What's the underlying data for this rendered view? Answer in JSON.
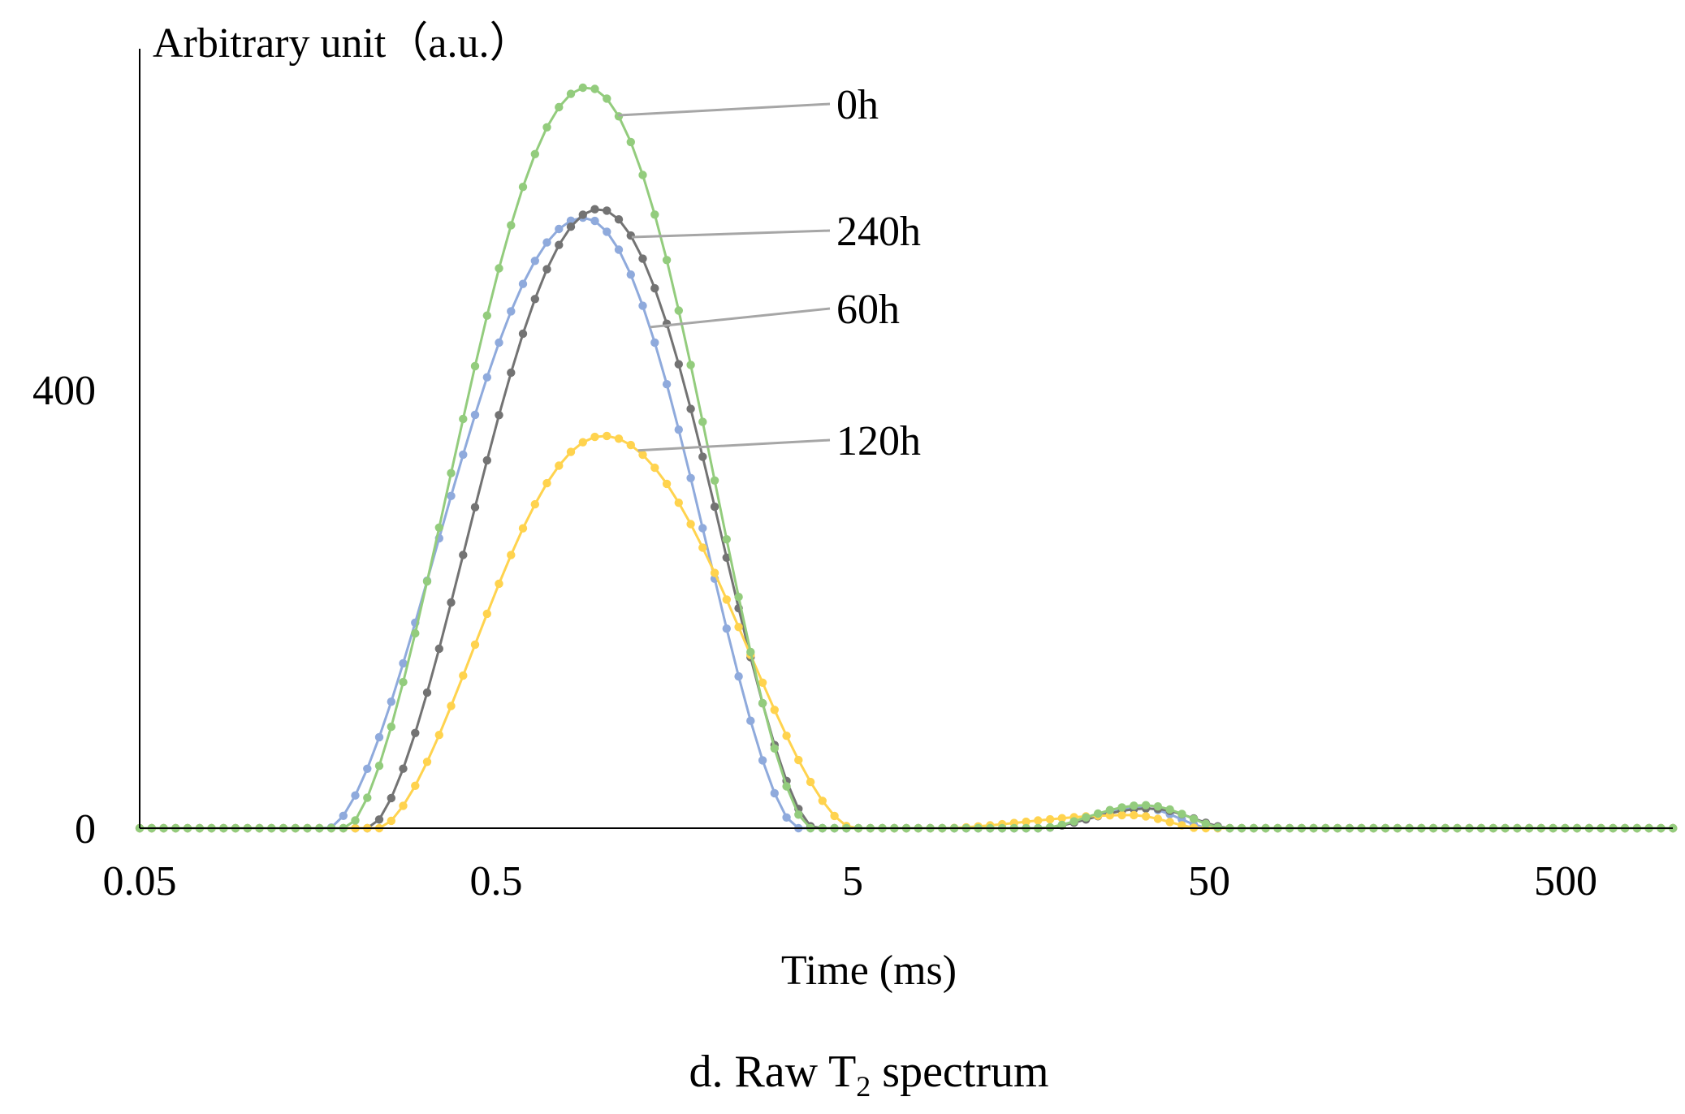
{
  "chart_data": {
    "type": "line",
    "title": "",
    "xlabel": "Time (ms)",
    "ylabel": "Arbitrary unit（a.u.）",
    "caption_main": "d. Raw T",
    "caption_sub": "2",
    "caption_tail": " spectrum",
    "x_scale": "log",
    "xlim": [
      0.05,
      1000
    ],
    "ylim": [
      0,
      700
    ],
    "x_ticks": [
      0.05,
      0.5,
      5,
      50,
      500
    ],
    "x_tick_labels": [
      "0.05",
      "0.5",
      "5",
      "50",
      "500"
    ],
    "y_ticks": [
      0,
      400
    ],
    "y_tick_labels": [
      "0",
      "400"
    ],
    "grid": false,
    "legend": "none",
    "points_per_series": 129,
    "series": [
      {
        "name": "0h",
        "color": "#93cc7d",
        "peaks": [
          {
            "start": 0.19,
            "apex": 0.9,
            "end": 3.8,
            "value": 676
          },
          {
            "start": 17,
            "apex": 33,
            "end": 55,
            "value": 21
          }
        ]
      },
      {
        "name": "60h",
        "color": "#8faadc",
        "peaks": [
          {
            "start": 0.17,
            "apex": 0.88,
            "end": 3.5,
            "value": 557
          },
          {
            "start": 17,
            "apex": 32,
            "end": 50,
            "value": 19
          }
        ]
      },
      {
        "name": "120h",
        "color": "#ffd34e",
        "peaks": [
          {
            "start": 0.235,
            "apex": 1.0,
            "end": 5.0,
            "value": 358
          },
          {
            "start": 9,
            "apex": 30,
            "end": 47,
            "value": 12
          }
        ]
      },
      {
        "name": "240h",
        "color": "#737373",
        "peaks": [
          {
            "start": 0.22,
            "apex": 0.97,
            "end": 3.9,
            "value": 565
          },
          {
            "start": 17,
            "apex": 34,
            "end": 57,
            "value": 18
          }
        ]
      }
    ],
    "annotations": [
      {
        "series": "0h",
        "text": "0h",
        "at_x": 1.1
      },
      {
        "series": "240h",
        "text": "240h",
        "at_x": 1.2
      },
      {
        "series": "60h",
        "text": "60h",
        "at_x": 1.35
      },
      {
        "series": "120h",
        "text": "120h",
        "at_x": 1.25
      }
    ]
  }
}
